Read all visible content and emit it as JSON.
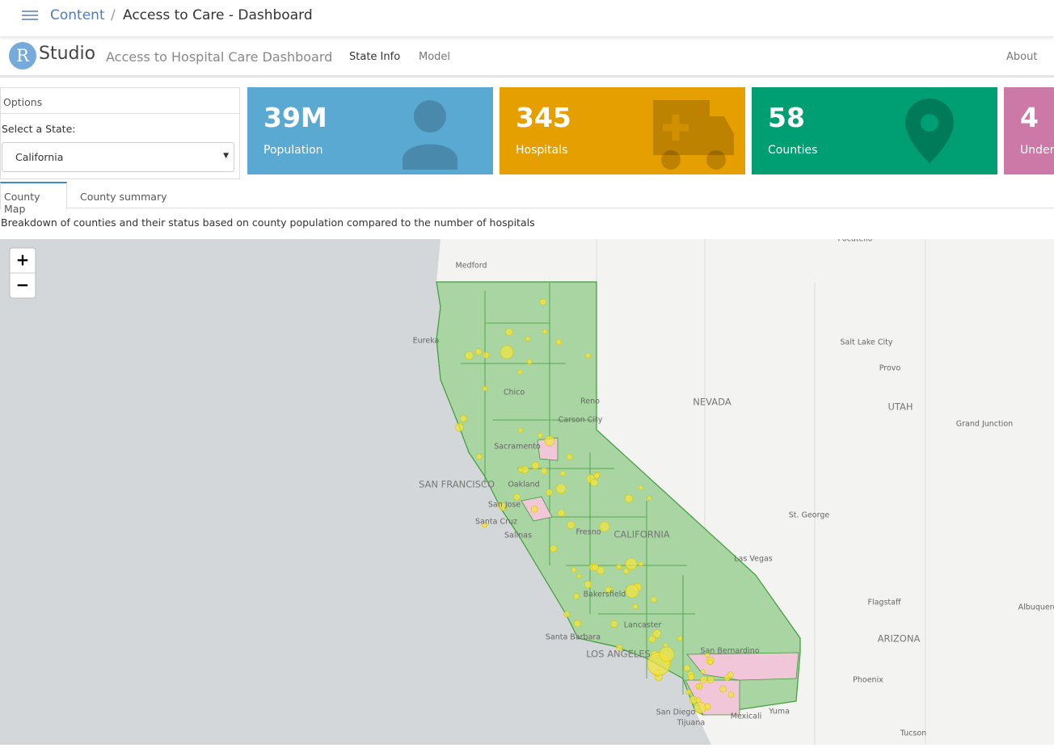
{
  "breadcrumb": {
    "root": "Content",
    "separator": "/",
    "page": "Access to Care - Dashboard"
  },
  "navbar": {
    "logo_letter": "R",
    "logo_text": "Studio",
    "title": "Access to Hospital Care Dashboard",
    "tabs": [
      "State Info",
      "Model"
    ],
    "about": "About"
  },
  "options": {
    "header": "Options",
    "label": "Select a State:",
    "selected": "California"
  },
  "value_boxes": [
    {
      "value": "39M",
      "label": "Population",
      "color": "#5aa9d2"
    },
    {
      "value": "345",
      "label": "Hospitals",
      "color": "#e69f00"
    },
    {
      "value": "58",
      "label": "Counties",
      "color": "#009e73"
    },
    {
      "value": "4",
      "label": "Unders",
      "color": "#cc79a7"
    }
  ],
  "tabs": [
    "County Map",
    "County summary"
  ],
  "description": "Breakdown of counties and their status based on county population compared to the number of hospitals",
  "map": {
    "zoom_in": "+",
    "zoom_out": "−",
    "labels": [
      "Pocatello",
      "Medford",
      "Eureka",
      "Salt Lake City",
      "Provo",
      "Chico",
      "Reno",
      "NEVADA",
      "UTAH",
      "Carson City",
      "Grand Junction",
      "Sacramento",
      "SAN FRANCISCO",
      "Oakland",
      "San Jose",
      "Santa Cruz",
      "Salinas",
      "Fresno",
      "CALIFORNIA",
      "St. George",
      "Las Vegas",
      "Bakersfield",
      "Lancaster",
      "Flagstaff",
      "Albuquerque",
      "Santa Barbara",
      "LOS ANGELES",
      "San Bernardino",
      "ARIZONA",
      "Phoenix",
      "San Diego",
      "Tijuana",
      "Mexicali",
      "Yuma",
      "Tucson"
    ]
  }
}
